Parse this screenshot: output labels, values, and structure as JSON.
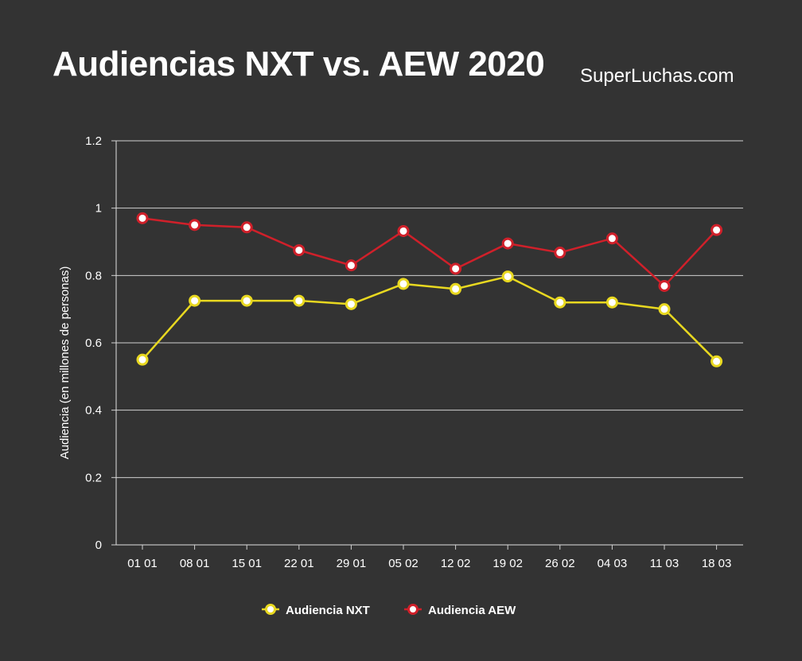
{
  "header": {
    "title": "Audiencias NXT vs. AEW 2020",
    "brand": "SuperLuchas.com"
  },
  "chart_data": {
    "type": "line",
    "title": "Audiencias NXT vs. AEW 2020",
    "xlabel": "",
    "ylabel": "Audiencia (en millones de personas)",
    "ylim": [
      0,
      1.2
    ],
    "yticks": [
      "0",
      "0.2",
      "0.4",
      "0.6",
      "0.8",
      "1",
      "1.2"
    ],
    "grid": true,
    "legend_position": "bottom",
    "categories": [
      "01 01",
      "08 01",
      "15 01",
      "22 01",
      "29 01",
      "05 02",
      "12 02",
      "19 02",
      "26 02",
      "04 03",
      "11 03",
      "18 03"
    ],
    "series": [
      {
        "name": "Audiencia NXT",
        "color": "#e8d820",
        "values": [
          0.55,
          0.725,
          0.725,
          0.725,
          0.715,
          0.775,
          0.76,
          0.797,
          0.72,
          0.72,
          0.7,
          0.545
        ]
      },
      {
        "name": "Audiencia AEW",
        "color": "#d0202a",
        "values": [
          0.97,
          0.95,
          0.943,
          0.875,
          0.83,
          0.932,
          0.82,
          0.895,
          0.868,
          0.91,
          0.769,
          0.935
        ]
      }
    ]
  }
}
